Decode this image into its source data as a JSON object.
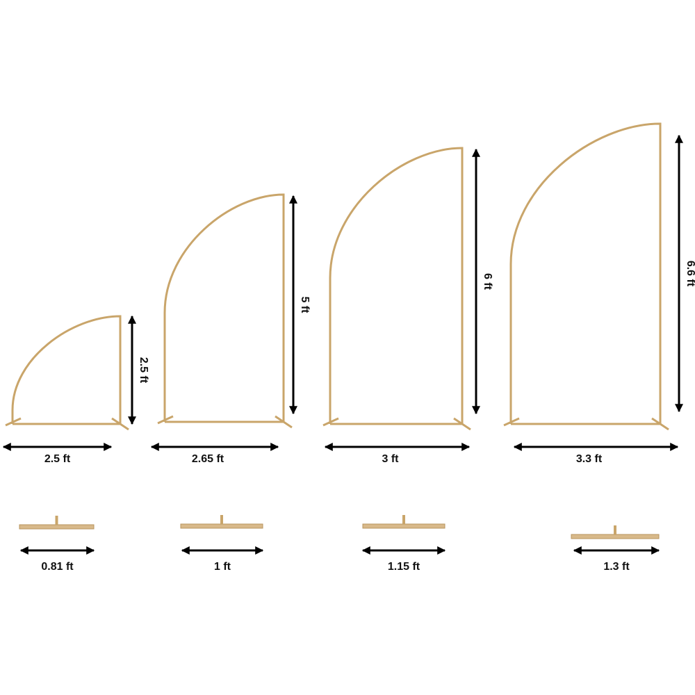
{
  "frames": [
    {
      "height": "2.5 ft",
      "width": "2.5 ft",
      "base": "0.81 ft"
    },
    {
      "height": "5 ft",
      "width": "2.65 ft",
      "base": "1 ft"
    },
    {
      "height": "6 ft",
      "width": "3 ft",
      "base": "1.15 ft"
    },
    {
      "height": "6.6 ft",
      "width": "3.3 ft",
      "base": "1.3 ft"
    }
  ]
}
